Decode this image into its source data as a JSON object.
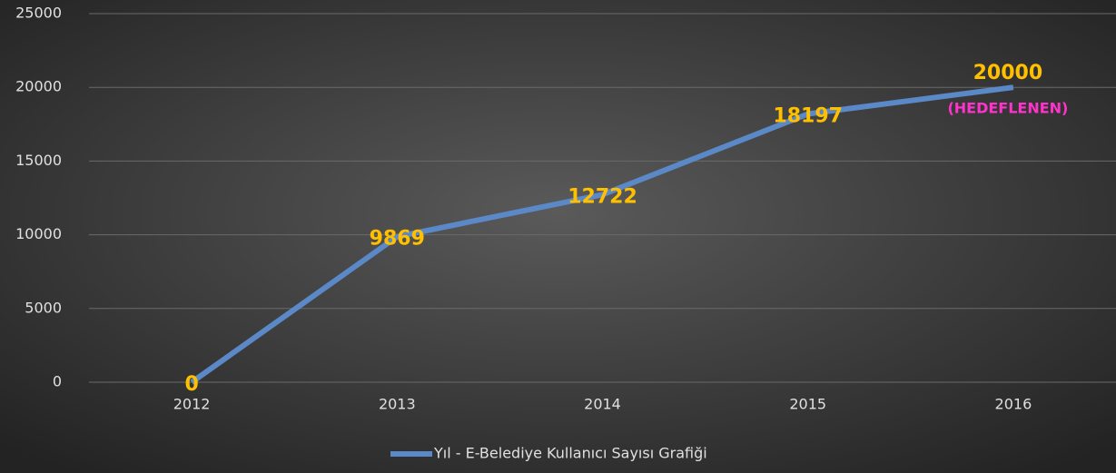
{
  "chart_data": {
    "type": "line",
    "categories": [
      "2012",
      "2013",
      "2014",
      "2015",
      "2016"
    ],
    "series": [
      {
        "name": "Yıl - E-Belediye Kullanıcı Sayısı Grafiği",
        "color": "#5b88c6",
        "values": [
          0,
          9869,
          12722,
          18197,
          20000
        ]
      }
    ],
    "ylim": [
      0,
      25000
    ],
    "yticks": [
      0,
      5000,
      10000,
      15000,
      20000,
      25000
    ],
    "grid": true,
    "legend": "bottom",
    "label_color": "#ffc000",
    "annotations": [
      {
        "text": "(HEDEFLENEN)",
        "color": "#ff33cc"
      }
    ]
  }
}
